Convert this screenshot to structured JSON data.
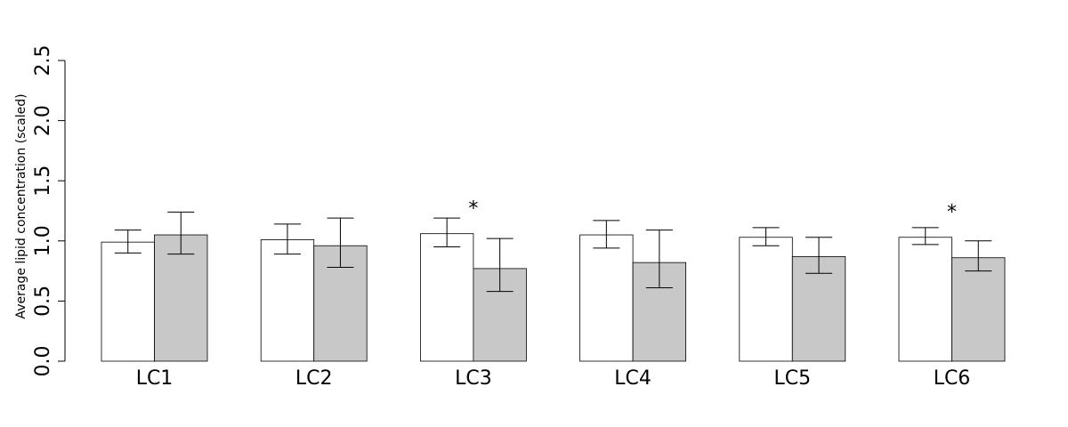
{
  "chart_data": {
    "type": "bar",
    "title": "",
    "xlabel": "",
    "ylabel": "Average lipid concentration (scaled)",
    "ylim": [
      0,
      2.5
    ],
    "yticks": [
      "0.0",
      "0.5",
      "1.0",
      "1.5",
      "2.0",
      "2.5"
    ],
    "categories": [
      "LC1",
      "LC2",
      "LC3",
      "LC4",
      "LC5",
      "LC6"
    ],
    "grid": false,
    "legend": "none",
    "series": [
      {
        "color": "#ffffff",
        "values": [
          0.99,
          1.01,
          1.06,
          1.05,
          1.03,
          1.03
        ],
        "err_low": [
          0.9,
          0.89,
          0.95,
          0.94,
          0.96,
          0.97
        ],
        "err_high": [
          1.09,
          1.14,
          1.19,
          1.17,
          1.11,
          1.11
        ]
      },
      {
        "color": "#c8c8c8",
        "values": [
          1.05,
          0.96,
          0.77,
          0.82,
          0.87,
          0.86
        ],
        "err_low": [
          0.89,
          0.78,
          0.58,
          0.61,
          0.73,
          0.75
        ],
        "err_high": [
          1.24,
          1.19,
          1.02,
          1.09,
          1.03,
          1.0
        ]
      }
    ],
    "annotations": [
      {
        "category": "LC3",
        "text": "*",
        "y": 1.32
      },
      {
        "category": "LC6",
        "text": "*",
        "y": 1.29
      }
    ]
  }
}
